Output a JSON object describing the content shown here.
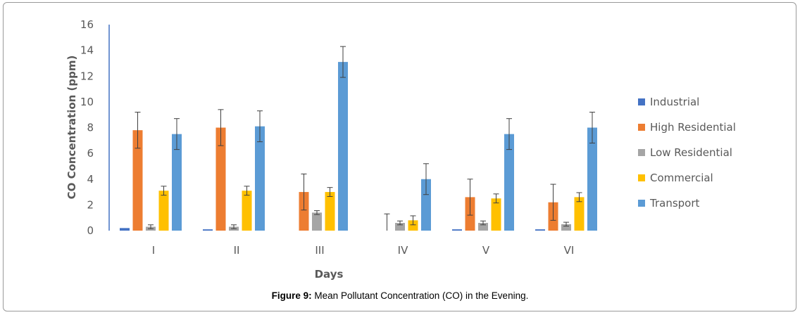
{
  "caption": {
    "label": "Figure 9:",
    "text": "Mean Pollutant Concentration (CO) in the Evening."
  },
  "chart_data": {
    "type": "bar",
    "xlabel": "Days",
    "ylabel": "CO Concentration (ppm)",
    "ylim": [
      0,
      16
    ],
    "yticks": [
      0,
      2,
      4,
      6,
      8,
      10,
      12,
      14,
      16
    ],
    "grid": false,
    "legend_position": "right",
    "categories": [
      "I",
      "II",
      "III",
      "IV",
      "V",
      "VI"
    ],
    "series": [
      {
        "name": "Industrial",
        "color": "#4472c4",
        "values": [
          0.2,
          0.1,
          0,
          0,
          0.1,
          0.1
        ],
        "errors": [
          null,
          null,
          null,
          null,
          null,
          null
        ]
      },
      {
        "name": "High Residential",
        "color": "#ed7d31",
        "values": [
          7.8,
          8.0,
          3.0,
          0,
          2.6,
          2.2
        ],
        "errors": [
          1.4,
          1.4,
          1.4,
          1.3,
          1.4,
          1.4
        ]
      },
      {
        "name": "Low Residential",
        "color": "#a5a5a5",
        "values": [
          0.3,
          0.3,
          1.4,
          0.6,
          0.6,
          0.5
        ],
        "errors": [
          0.15,
          0.15,
          0.15,
          0.15,
          0.15,
          0.15
        ]
      },
      {
        "name": "Commercial",
        "color": "#ffc000",
        "values": [
          3.1,
          3.1,
          3.0,
          0.8,
          2.5,
          2.6
        ],
        "errors": [
          0.35,
          0.35,
          0.35,
          0.35,
          0.35,
          0.35
        ]
      },
      {
        "name": "Transport",
        "color": "#5b9bd5",
        "values": [
          7.5,
          8.1,
          13.1,
          4.0,
          7.5,
          8.0
        ],
        "errors": [
          1.2,
          1.2,
          1.2,
          1.2,
          1.2,
          1.2
        ]
      }
    ]
  }
}
